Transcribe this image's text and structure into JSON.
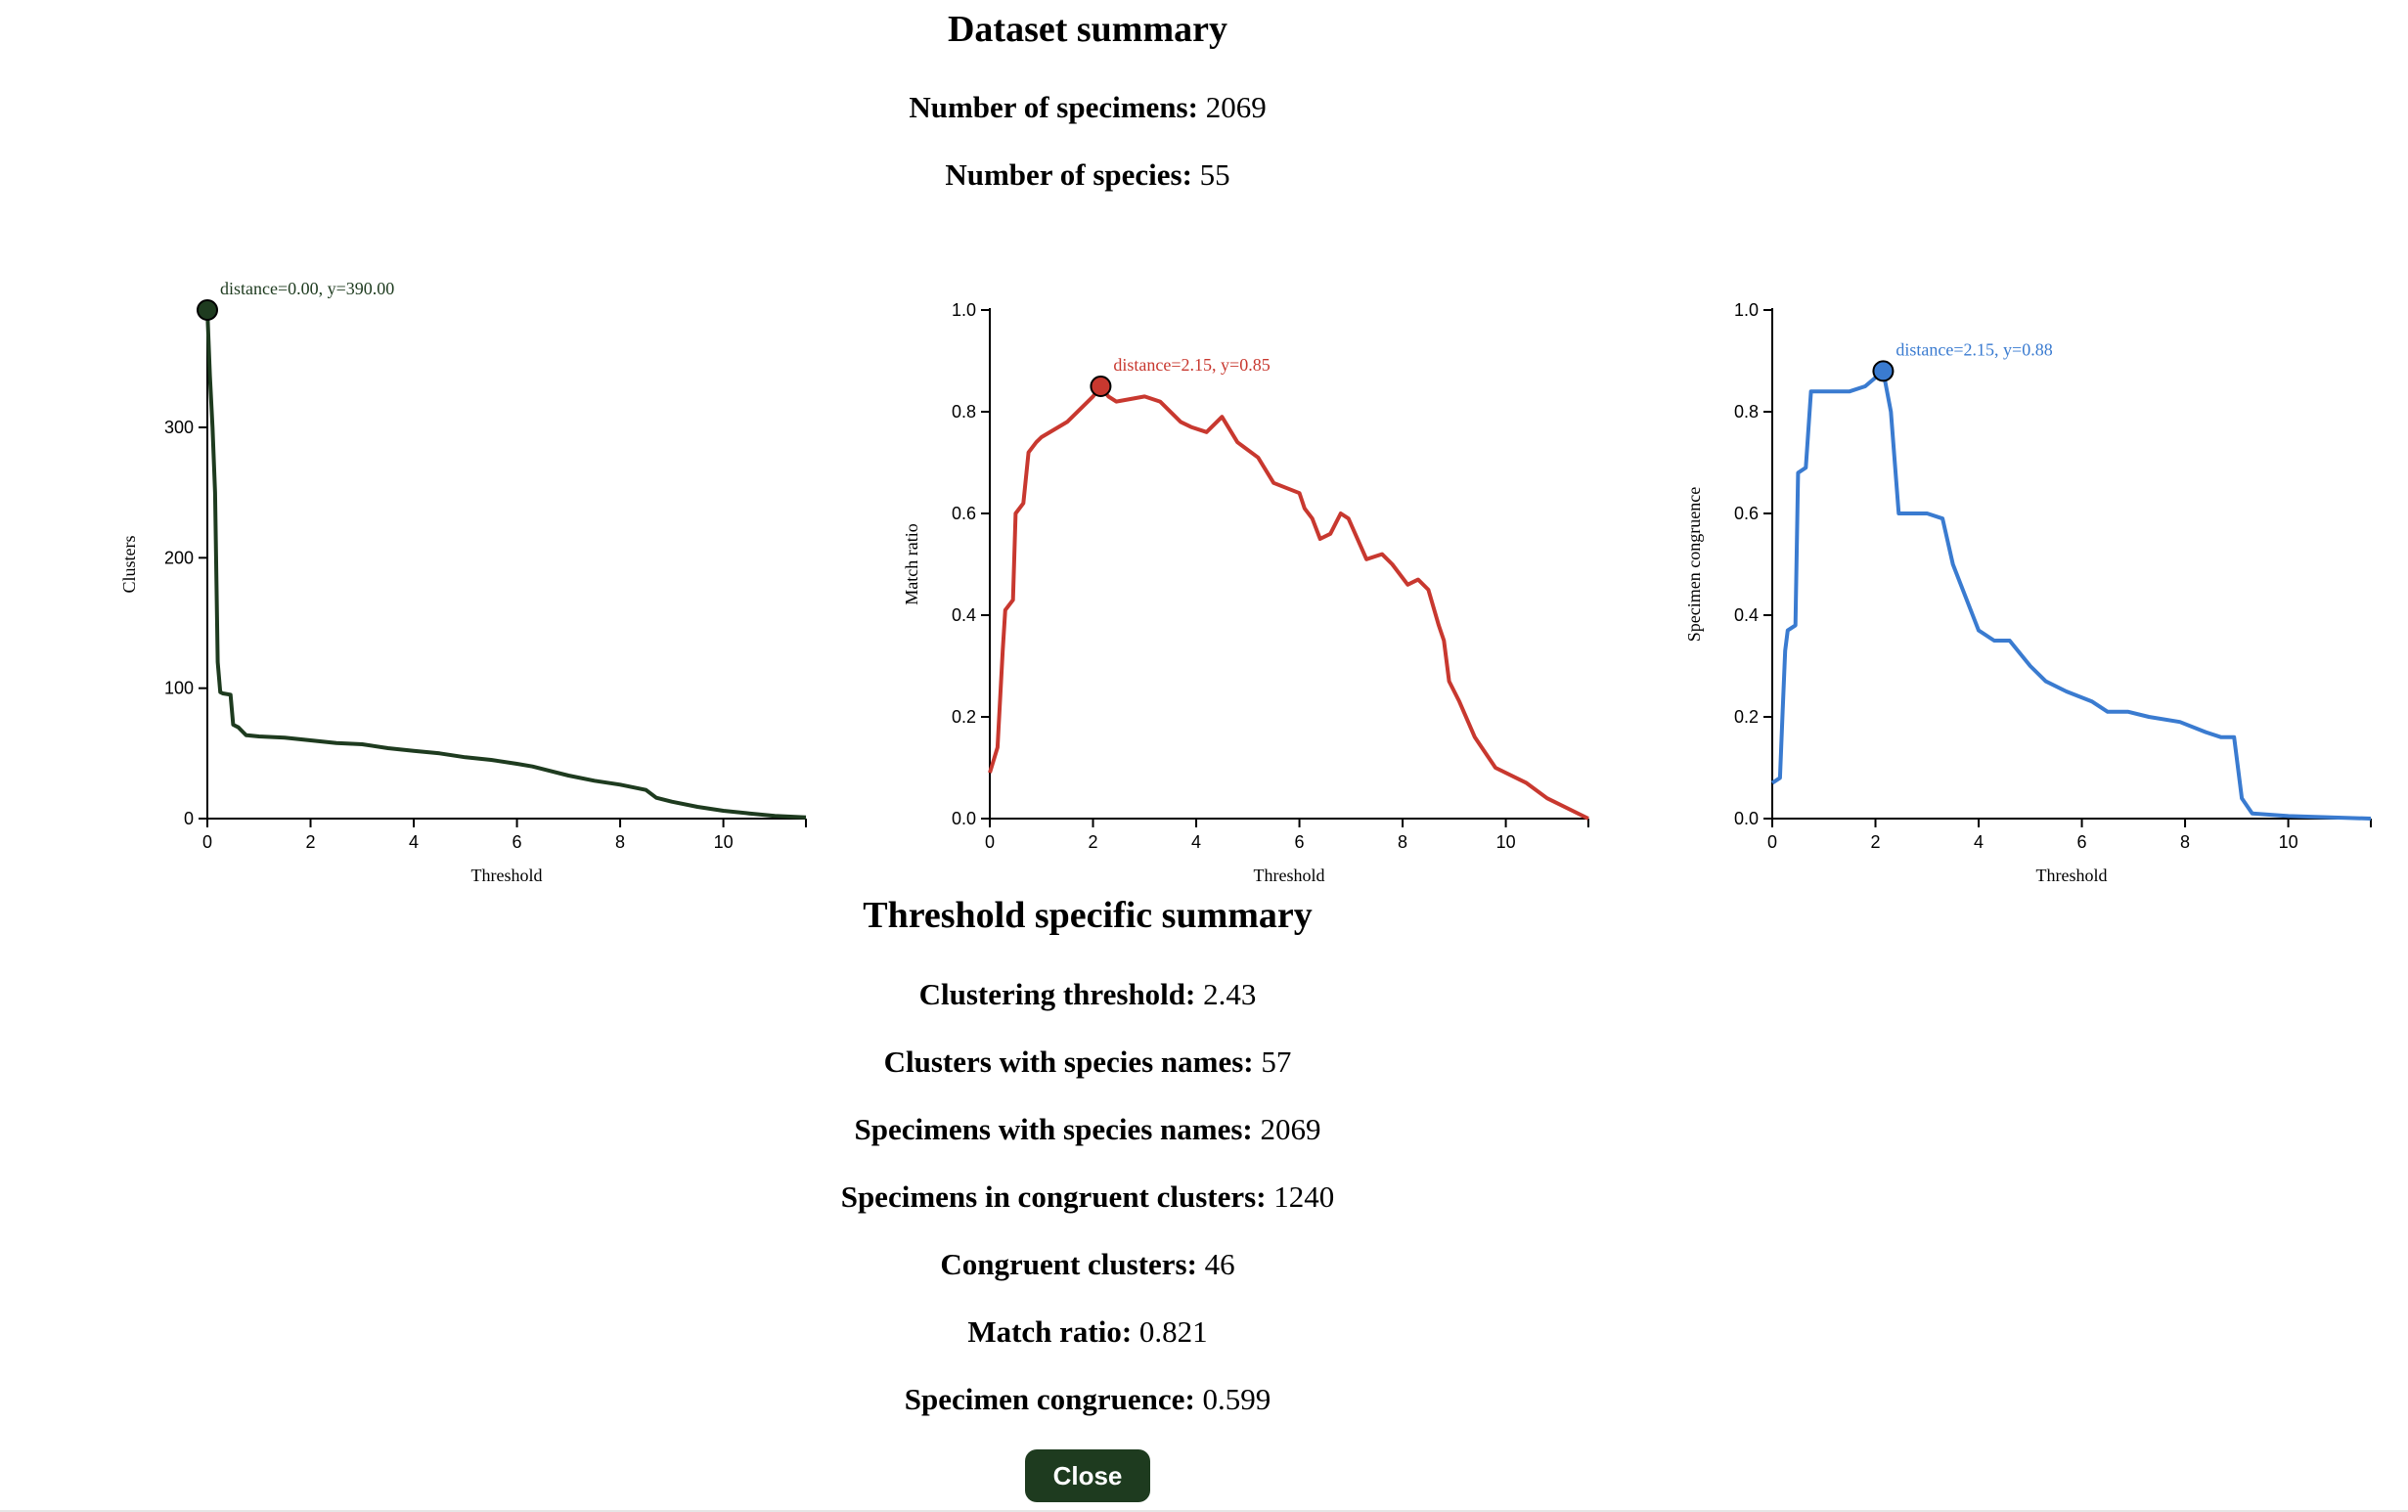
{
  "dataset_summary": {
    "title": "Dataset summary",
    "specimens_label": "Number of specimens:",
    "specimens_value": "2069",
    "species_label": "Number of species:",
    "species_value": "55"
  },
  "threshold_summary": {
    "title": "Threshold specific summary",
    "items": [
      {
        "label": "Clustering threshold:",
        "value": "2.43"
      },
      {
        "label": "Clusters with species names:",
        "value": "57"
      },
      {
        "label": "Specimens with species names:",
        "value": "2069"
      },
      {
        "label": "Specimens in congruent clusters:",
        "value": "1240"
      },
      {
        "label": "Congruent clusters:",
        "value": "46"
      },
      {
        "label": "Match ratio:",
        "value": "0.821"
      },
      {
        "label": "Specimen congruence:",
        "value": "0.599"
      }
    ]
  },
  "close_button": {
    "label": "Close"
  },
  "colors": {
    "clusters": "#1e3b1f",
    "match": "#c8382f",
    "congruence": "#3a7bd0",
    "button_bg": "#1e3b1f"
  },
  "chart_data": [
    {
      "id": "clusters",
      "type": "line",
      "xlabel": "Threshold",
      "ylabel": "Clusters",
      "xlim": [
        0,
        11.6
      ],
      "ylim": [
        0,
        390
      ],
      "xticks": [
        0,
        2,
        4,
        6,
        8,
        10
      ],
      "xtick_labels": [
        "0",
        "2",
        "4",
        "6",
        "8",
        "10"
      ],
      "yticks": [
        0,
        100,
        200,
        300
      ],
      "ytick_labels": [
        "0",
        "100",
        "200",
        "300"
      ],
      "highlight": {
        "x": 0.0,
        "y": 390,
        "label": "distance=0.00, y=390.00"
      },
      "x": [
        0,
        0.05,
        0.1,
        0.15,
        0.2,
        0.25,
        0.3,
        0.45,
        0.5,
        0.6,
        0.7,
        0.75,
        1.0,
        1.5,
        2.0,
        2.5,
        3.0,
        3.5,
        4.0,
        4.5,
        5.0,
        5.5,
        6.0,
        6.3,
        6.6,
        7.0,
        7.5,
        8.0,
        8.5,
        8.7,
        9.0,
        9.5,
        10.0,
        10.5,
        11.0,
        11.6
      ],
      "values": [
        390,
        340,
        300,
        250,
        120,
        97,
        96,
        95,
        72,
        70,
        66,
        64,
        63,
        62,
        60,
        58,
        57,
        54,
        52,
        50,
        47,
        45,
        42,
        40,
        37,
        33,
        29,
        26,
        22,
        16,
        13,
        9,
        6,
        4,
        2,
        1
      ]
    },
    {
      "id": "match",
      "type": "line",
      "xlabel": "Threshold",
      "ylabel": "Match ratio",
      "xlim": [
        0,
        11.6
      ],
      "ylim": [
        0,
        1.0
      ],
      "xticks": [
        0,
        2,
        4,
        6,
        8,
        10
      ],
      "xtick_labels": [
        "0",
        "2",
        "4",
        "6",
        "8",
        "10"
      ],
      "yticks": [
        0,
        0.2,
        0.4,
        0.6,
        0.8,
        1.0
      ],
      "ytick_labels": [
        "0.0",
        "0.2",
        "0.4",
        "0.6",
        "0.8",
        "1.0"
      ],
      "highlight": {
        "x": 2.15,
        "y": 0.85,
        "label": "distance=2.15, y=0.85"
      },
      "x": [
        0,
        0.15,
        0.25,
        0.3,
        0.45,
        0.5,
        0.65,
        0.75,
        0.9,
        1.0,
        1.5,
        2.0,
        2.15,
        2.3,
        2.45,
        3.0,
        3.3,
        3.7,
        3.9,
        4.2,
        4.5,
        4.8,
        5.2,
        5.5,
        6.0,
        6.1,
        6.25,
        6.4,
        6.6,
        6.8,
        6.95,
        7.3,
        7.6,
        7.8,
        8.1,
        8.3,
        8.5,
        8.7,
        8.8,
        8.9,
        9.1,
        9.4,
        9.8,
        10.4,
        10.8,
        11.6
      ],
      "values": [
        0.09,
        0.14,
        0.33,
        0.41,
        0.43,
        0.6,
        0.62,
        0.72,
        0.74,
        0.75,
        0.78,
        0.83,
        0.85,
        0.83,
        0.82,
        0.83,
        0.82,
        0.78,
        0.77,
        0.76,
        0.79,
        0.74,
        0.71,
        0.66,
        0.64,
        0.61,
        0.59,
        0.55,
        0.56,
        0.6,
        0.59,
        0.51,
        0.52,
        0.5,
        0.46,
        0.47,
        0.45,
        0.38,
        0.35,
        0.27,
        0.23,
        0.16,
        0.1,
        0.07,
        0.04,
        0.0
      ]
    },
    {
      "id": "congruence",
      "type": "line",
      "xlabel": "Threshold",
      "ylabel": "Specimen congruence",
      "xlim": [
        0,
        11.6
      ],
      "ylim": [
        0,
        1.0
      ],
      "xticks": [
        0,
        2,
        4,
        6,
        8,
        10
      ],
      "xtick_labels": [
        "0",
        "2",
        "4",
        "6",
        "8",
        "10"
      ],
      "yticks": [
        0,
        0.2,
        0.4,
        0.6,
        0.8,
        1.0
      ],
      "ytick_labels": [
        "0.0",
        "0.2",
        "0.4",
        "0.6",
        "0.8",
        "1.0"
      ],
      "highlight": {
        "x": 2.15,
        "y": 0.88,
        "label": "distance=2.15, y=0.88"
      },
      "x": [
        0,
        0.15,
        0.2,
        0.25,
        0.3,
        0.45,
        0.5,
        0.65,
        0.75,
        1.5,
        1.8,
        2.15,
        2.3,
        2.45,
        3.0,
        3.3,
        3.5,
        4.0,
        4.3,
        4.6,
        5.0,
        5.3,
        5.7,
        6.2,
        6.5,
        6.9,
        7.3,
        7.9,
        8.4,
        8.7,
        8.95,
        9.1,
        9.3,
        10.0,
        11.6
      ],
      "values": [
        0.07,
        0.08,
        0.21,
        0.33,
        0.37,
        0.38,
        0.68,
        0.69,
        0.84,
        0.84,
        0.85,
        0.88,
        0.8,
        0.6,
        0.6,
        0.59,
        0.5,
        0.37,
        0.35,
        0.35,
        0.3,
        0.27,
        0.25,
        0.23,
        0.21,
        0.21,
        0.2,
        0.19,
        0.17,
        0.16,
        0.16,
        0.04,
        0.01,
        0.005,
        0.0
      ]
    }
  ]
}
